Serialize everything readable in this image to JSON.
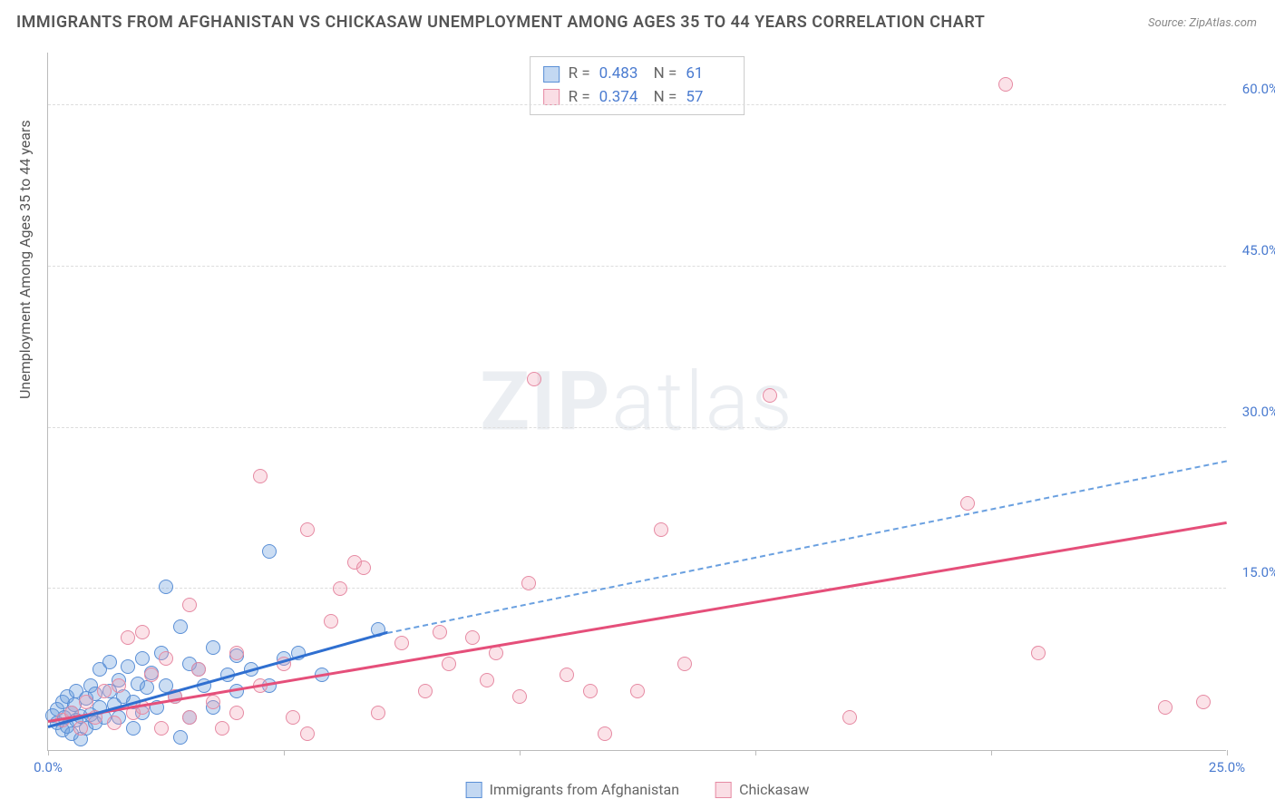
{
  "title": "IMMIGRANTS FROM AFGHANISTAN VS CHICKASAW UNEMPLOYMENT AMONG AGES 35 TO 44 YEARS CORRELATION CHART",
  "source": "Source: ZipAtlas.com",
  "watermark_bold": "ZIP",
  "watermark_light": "atlas",
  "y_axis_label": "Unemployment Among Ages 35 to 44 years",
  "chart": {
    "type": "scatter",
    "background_color": "#ffffff",
    "grid_color": "#dddddd",
    "xlim": [
      0,
      25
    ],
    "ylim": [
      0,
      65
    ],
    "x_ticks": [
      0,
      5,
      10,
      15,
      20,
      25
    ],
    "y_ticks": [
      15,
      30,
      45,
      60
    ],
    "x_tick_format": "{v}.0%",
    "y_tick_format": "{v}.0%",
    "marker_radius": 8,
    "series": [
      {
        "name": "Immigrants from Afghanistan",
        "fill": "rgba(106,158,222,0.35)",
        "stroke": "#5a8fd6",
        "r_value": "0.483",
        "n_value": "61",
        "trend_solid": {
          "x1": 0.0,
          "y1": 2.0,
          "x2": 7.2,
          "y2": 10.8,
          "color": "#2f6fd0",
          "width": 3
        },
        "trend_dashed": {
          "x1": 7.2,
          "y1": 10.8,
          "x2": 25.0,
          "y2": 26.8,
          "color": "#6aa0e0",
          "width": 2
        },
        "points": [
          [
            0.1,
            3.2
          ],
          [
            0.2,
            2.5
          ],
          [
            0.2,
            3.8
          ],
          [
            0.3,
            1.9
          ],
          [
            0.3,
            4.5
          ],
          [
            0.35,
            3.0
          ],
          [
            0.4,
            2.2
          ],
          [
            0.4,
            5.0
          ],
          [
            0.5,
            3.5
          ],
          [
            0.5,
            1.5
          ],
          [
            0.55,
            4.2
          ],
          [
            0.6,
            2.8
          ],
          [
            0.6,
            5.5
          ],
          [
            0.7,
            3.1
          ],
          [
            0.7,
            1.0
          ],
          [
            0.8,
            4.8
          ],
          [
            0.8,
            2.0
          ],
          [
            0.9,
            6.0
          ],
          [
            0.9,
            3.3
          ],
          [
            1.0,
            5.2
          ],
          [
            1.0,
            2.5
          ],
          [
            1.1,
            7.5
          ],
          [
            1.1,
            4.0
          ],
          [
            1.2,
            3.0
          ],
          [
            1.3,
            8.2
          ],
          [
            1.3,
            5.5
          ],
          [
            1.4,
            4.2
          ],
          [
            1.5,
            6.5
          ],
          [
            1.5,
            3.0
          ],
          [
            1.6,
            5.0
          ],
          [
            1.7,
            7.8
          ],
          [
            1.8,
            4.5
          ],
          [
            1.8,
            2.0
          ],
          [
            1.9,
            6.2
          ],
          [
            2.0,
            8.5
          ],
          [
            2.0,
            3.5
          ],
          [
            2.1,
            5.8
          ],
          [
            2.2,
            7.2
          ],
          [
            2.3,
            4.0
          ],
          [
            2.4,
            9.0
          ],
          [
            2.5,
            15.2
          ],
          [
            2.5,
            6.0
          ],
          [
            2.7,
            5.0
          ],
          [
            2.8,
            11.5
          ],
          [
            2.8,
            1.2
          ],
          [
            3.0,
            8.0
          ],
          [
            3.0,
            3.0
          ],
          [
            3.2,
            7.5
          ],
          [
            3.3,
            6.0
          ],
          [
            3.5,
            9.5
          ],
          [
            3.5,
            4.0
          ],
          [
            3.8,
            7.0
          ],
          [
            4.0,
            8.8
          ],
          [
            4.0,
            5.5
          ],
          [
            4.3,
            7.5
          ],
          [
            4.7,
            18.5
          ],
          [
            4.7,
            6.0
          ],
          [
            5.0,
            8.5
          ],
          [
            5.3,
            9.0
          ],
          [
            5.8,
            7.0
          ],
          [
            7.0,
            11.2
          ]
        ]
      },
      {
        "name": "Chickasaw",
        "fill": "rgba(242,160,180,0.30)",
        "stroke": "#e68aa3",
        "r_value": "0.374",
        "n_value": "57",
        "trend_solid": {
          "x1": 0.0,
          "y1": 2.5,
          "x2": 25.0,
          "y2": 21.0,
          "color": "#e54f7a",
          "width": 3
        },
        "trend_dashed": null,
        "points": [
          [
            0.3,
            2.8
          ],
          [
            0.5,
            3.5
          ],
          [
            0.7,
            2.0
          ],
          [
            0.8,
            4.5
          ],
          [
            1.0,
            3.0
          ],
          [
            1.2,
            5.5
          ],
          [
            1.4,
            2.5
          ],
          [
            1.5,
            6.0
          ],
          [
            1.7,
            10.5
          ],
          [
            1.8,
            3.5
          ],
          [
            2.0,
            11.0
          ],
          [
            2.0,
            4.0
          ],
          [
            2.2,
            7.0
          ],
          [
            2.4,
            2.0
          ],
          [
            2.5,
            8.5
          ],
          [
            2.7,
            5.0
          ],
          [
            3.0,
            13.5
          ],
          [
            3.0,
            3.0
          ],
          [
            3.2,
            7.5
          ],
          [
            3.5,
            4.5
          ],
          [
            3.7,
            2.0
          ],
          [
            4.0,
            9.0
          ],
          [
            4.0,
            3.5
          ],
          [
            4.5,
            25.5
          ],
          [
            4.5,
            6.0
          ],
          [
            5.0,
            8.0
          ],
          [
            5.2,
            3.0
          ],
          [
            5.5,
            20.5
          ],
          [
            5.5,
            1.5
          ],
          [
            6.0,
            12.0
          ],
          [
            6.2,
            15.0
          ],
          [
            6.5,
            17.5
          ],
          [
            6.7,
            17.0
          ],
          [
            7.0,
            3.5
          ],
          [
            7.5,
            10.0
          ],
          [
            8.0,
            5.5
          ],
          [
            8.3,
            11.0
          ],
          [
            8.5,
            8.0
          ],
          [
            9.0,
            10.5
          ],
          [
            9.3,
            6.5
          ],
          [
            9.5,
            9.0
          ],
          [
            10.0,
            5.0
          ],
          [
            10.2,
            15.5
          ],
          [
            10.3,
            34.5
          ],
          [
            11.0,
            7.0
          ],
          [
            11.5,
            5.5
          ],
          [
            11.8,
            1.5
          ],
          [
            12.5,
            5.5
          ],
          [
            13.0,
            20.5
          ],
          [
            13.5,
            8.0
          ],
          [
            15.3,
            33.0
          ],
          [
            17.0,
            3.0
          ],
          [
            19.5,
            23.0
          ],
          [
            20.3,
            62.0
          ],
          [
            21.0,
            9.0
          ],
          [
            23.7,
            4.0
          ],
          [
            24.5,
            4.5
          ]
        ]
      }
    ]
  },
  "legend": {
    "r_label": "R =",
    "n_label": "N ="
  }
}
